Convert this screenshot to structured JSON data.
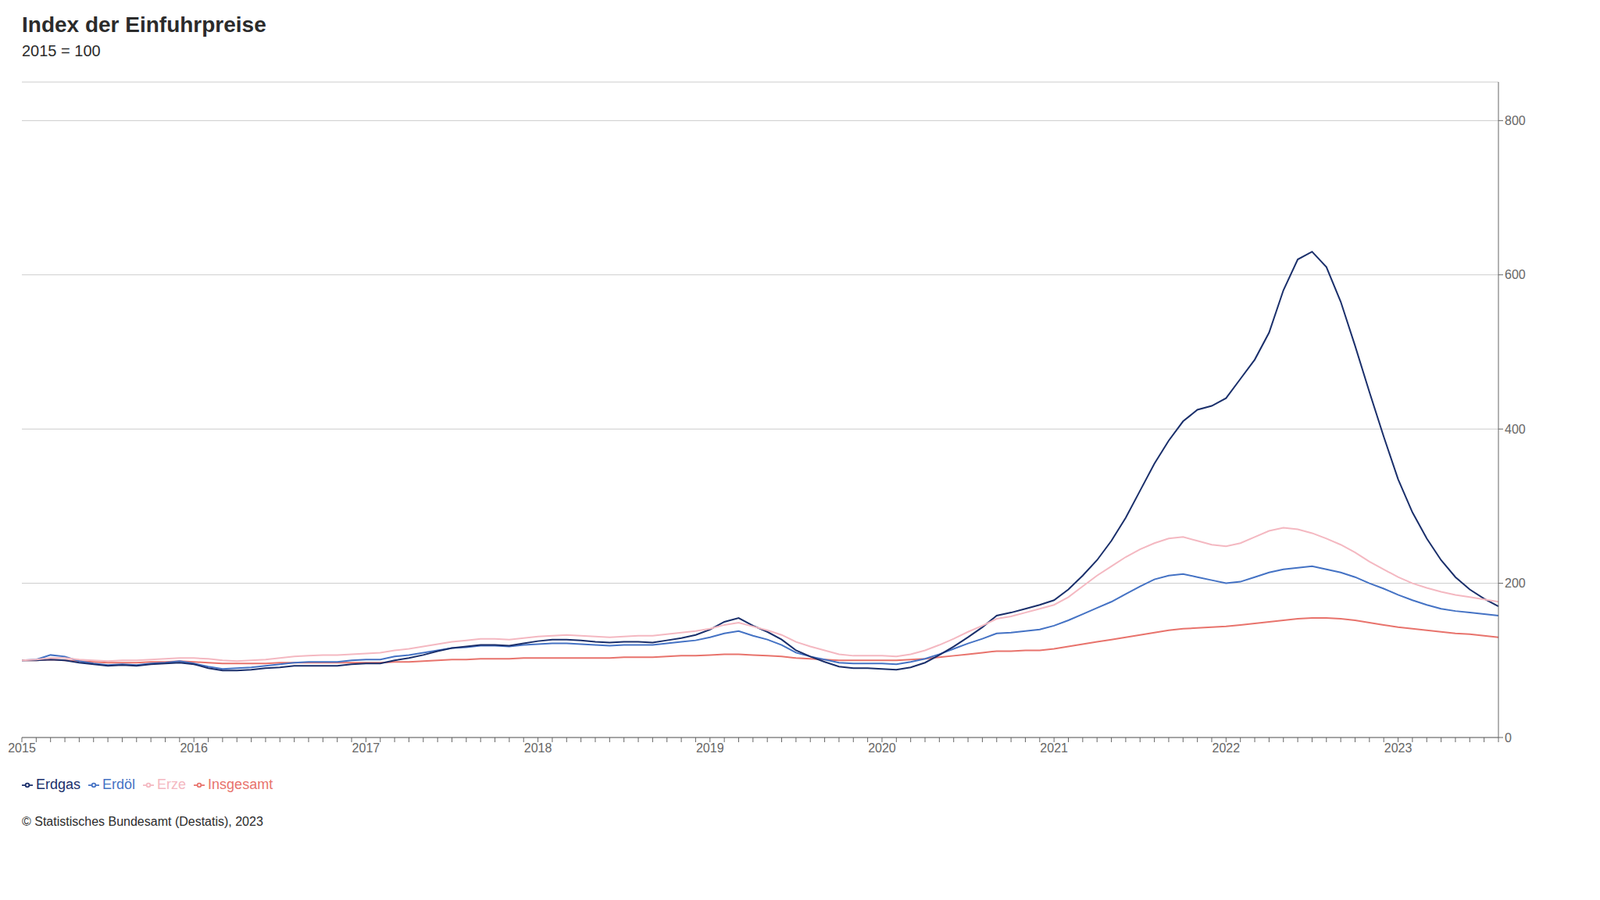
{
  "chart_data": {
    "type": "line",
    "title": "Index der Einfuhrpreise",
    "subtitle": "2015 = 100",
    "annotations": [
      "©  Statistisches Bundesamt (Destatis), 2023"
    ],
    "categories": [
      "2015",
      null,
      null,
      null,
      null,
      null,
      null,
      null,
      null,
      null,
      null,
      null,
      "2016",
      null,
      null,
      null,
      null,
      null,
      null,
      null,
      null,
      null,
      null,
      null,
      "2017",
      null,
      null,
      null,
      null,
      null,
      null,
      null,
      null,
      null,
      null,
      null,
      "2018",
      null,
      null,
      null,
      null,
      null,
      null,
      null,
      null,
      null,
      null,
      null,
      "2019",
      null,
      null,
      null,
      null,
      null,
      null,
      null,
      null,
      null,
      null,
      null,
      "2020",
      null,
      null,
      null,
      null,
      null,
      null,
      null,
      null,
      null,
      null,
      null,
      "2021",
      null,
      null,
      null,
      null,
      null,
      null,
      null,
      null,
      null,
      null,
      null,
      "2022",
      null,
      null,
      null,
      null,
      null,
      null,
      null,
      null,
      null,
      null,
      null,
      "2023",
      null,
      null,
      null,
      null,
      null,
      null,
      null
    ],
    "ylim": [
      0,
      850
    ],
    "yticks": [
      0,
      200,
      400,
      600,
      800
    ],
    "grid": true,
    "legend": "bottom",
    "series": [
      {
        "name": "Insgesamt",
        "color": "#e8736c",
        "values": [
          100,
          100,
          101,
          100,
          99,
          98,
          97,
          97,
          97,
          98,
          98,
          99,
          98,
          97,
          96,
          96,
          96,
          96,
          97,
          97,
          97,
          97,
          97,
          97,
          97,
          97,
          98,
          98,
          99,
          100,
          101,
          101,
          102,
          102,
          102,
          103,
          103,
          103,
          103,
          103,
          103,
          103,
          104,
          104,
          104,
          105,
          106,
          106,
          107,
          108,
          108,
          107,
          106,
          105,
          103,
          102,
          101,
          100,
          100,
          100,
          100,
          100,
          101,
          102,
          104,
          106,
          108,
          110,
          112,
          112,
          113,
          113,
          115,
          118,
          121,
          124,
          127,
          130,
          133,
          136,
          139,
          141,
          142,
          143,
          144,
          146,
          148,
          150,
          152,
          154,
          155,
          155,
          154,
          152,
          149,
          146,
          143,
          141,
          139,
          137,
          135,
          134,
          132,
          130
        ]
      },
      {
        "name": "Erdöl",
        "color": "#4472c4",
        "values": [
          100,
          101,
          107,
          105,
          99,
          96,
          94,
          95,
          94,
          96,
          97,
          99,
          96,
          92,
          89,
          90,
          91,
          93,
          95,
          97,
          98,
          98,
          98,
          100,
          101,
          101,
          105,
          107,
          110,
          113,
          116,
          117,
          119,
          119,
          118,
          120,
          121,
          122,
          122,
          121,
          120,
          119,
          120,
          120,
          120,
          122,
          124,
          126,
          130,
          135,
          138,
          132,
          127,
          120,
          110,
          105,
          101,
          97,
          96,
          96,
          96,
          95,
          98,
          102,
          108,
          115,
          122,
          128,
          135,
          136,
          138,
          140,
          145,
          152,
          160,
          168,
          176,
          186,
          196,
          205,
          210,
          212,
          208,
          204,
          200,
          202,
          208,
          214,
          218,
          220,
          222,
          218,
          214,
          208,
          200,
          193,
          185,
          178,
          172,
          167,
          164,
          162,
          160,
          158
        ]
      },
      {
        "name": "Erdgas",
        "color": "#1a2f6b",
        "values": [
          100,
          100,
          101,
          100,
          97,
          95,
          93,
          94,
          93,
          95,
          96,
          97,
          95,
          90,
          87,
          87,
          88,
          90,
          91,
          93,
          93,
          93,
          93,
          95,
          96,
          96,
          100,
          103,
          107,
          112,
          116,
          118,
          120,
          120,
          119,
          122,
          125,
          127,
          127,
          126,
          124,
          123,
          124,
          124,
          123,
          126,
          129,
          133,
          140,
          150,
          155,
          145,
          137,
          127,
          113,
          105,
          98,
          92,
          90,
          90,
          89,
          88,
          91,
          97,
          107,
          118,
          130,
          143,
          158,
          162,
          167,
          172,
          178,
          192,
          210,
          230,
          255,
          285,
          320,
          355,
          385,
          410,
          425,
          430,
          440,
          465,
          490,
          525,
          580,
          620,
          630,
          610,
          565,
          508,
          448,
          390,
          335,
          292,
          258,
          230,
          208,
          192,
          180,
          170
        ]
      },
      {
        "name": "Erze",
        "color": "#f4b8c1",
        "values": [
          100,
          101,
          103,
          103,
          101,
          100,
          99,
          100,
          100,
          101,
          102,
          103,
          103,
          102,
          100,
          99,
          100,
          101,
          103,
          105,
          106,
          107,
          107,
          108,
          109,
          110,
          113,
          115,
          118,
          121,
          124,
          126,
          128,
          128,
          127,
          129,
          131,
          132,
          133,
          132,
          131,
          130,
          131,
          132,
          132,
          134,
          136,
          138,
          141,
          146,
          149,
          144,
          139,
          133,
          124,
          118,
          113,
          108,
          106,
          106,
          106,
          105,
          108,
          113,
          120,
          128,
          137,
          145,
          154,
          157,
          162,
          167,
          172,
          182,
          196,
          210,
          222,
          234,
          244,
          252,
          258,
          260,
          255,
          250,
          248,
          252,
          260,
          268,
          272,
          270,
          265,
          258,
          250,
          240,
          228,
          218,
          208,
          200,
          194,
          189,
          185,
          182,
          179,
          176
        ]
      }
    ]
  }
}
